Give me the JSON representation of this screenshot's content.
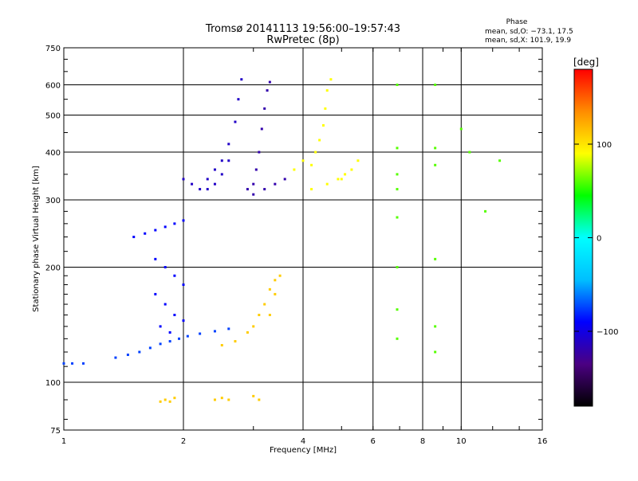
{
  "header": {
    "title": "Tromsø 20141113 19:56:00–19:57:43",
    "subtitle": "RwPretec (8p)"
  },
  "stats": {
    "heading": "Phase",
    "line1": "mean, sd,O: −73.1, 17.5",
    "line2": "mean, sd,X: 101.9, 19.9"
  },
  "colorbar": {
    "title": "[deg]",
    "ticks": [
      {
        "value": 100,
        "label": "100"
      },
      {
        "value": 0,
        "label": "0"
      },
      {
        "value": -100,
        "label": "−100"
      }
    ],
    "range": [
      -180,
      180
    ],
    "colormap": [
      "#000000",
      "#4b0082",
      "#0000ff",
      "#00bfff",
      "#00ffff",
      "#00ff00",
      "#ffff00",
      "#ff8c00",
      "#ff0000"
    ]
  },
  "chart_data": {
    "type": "scatter",
    "title": "Tromsø 20141113 19:56:00–19:57:43",
    "xlabel": "Frequency [MHz]",
    "ylabel": "Stationary phase Virtual Height [km]",
    "xscale": "log",
    "yscale": "log",
    "xlim": [
      1,
      16
    ],
    "ylim": [
      75,
      750
    ],
    "xticks": [
      1,
      2,
      4,
      6,
      8,
      10,
      16
    ],
    "yticks": [
      75,
      100,
      200,
      300,
      400,
      500,
      600,
      750
    ],
    "grid": true,
    "color_variable": "Phase [deg]",
    "clusters": [
      {
        "desc": "O-mode low trace",
        "color_phase": -75,
        "points": [
          [
            1.0,
            112
          ],
          [
            1.05,
            112
          ],
          [
            1.12,
            112
          ],
          [
            1.35,
            116
          ],
          [
            1.45,
            118
          ],
          [
            1.55,
            120
          ],
          [
            1.65,
            123
          ],
          [
            1.75,
            126
          ],
          [
            1.85,
            128
          ],
          [
            1.95,
            130
          ],
          [
            2.05,
            132
          ],
          [
            2.2,
            134
          ],
          [
            2.4,
            136
          ],
          [
            2.6,
            138
          ]
        ]
      },
      {
        "desc": "O-mode F1 band",
        "color_phase": -90,
        "points": [
          [
            1.5,
            240
          ],
          [
            1.6,
            245
          ],
          [
            1.7,
            250
          ],
          [
            1.8,
            255
          ],
          [
            1.9,
            260
          ],
          [
            2.0,
            265
          ],
          [
            1.7,
            210
          ],
          [
            1.8,
            200
          ],
          [
            1.9,
            190
          ],
          [
            2.0,
            180
          ],
          [
            1.7,
            170
          ],
          [
            1.8,
            160
          ],
          [
            1.9,
            150
          ],
          [
            2.0,
            145
          ],
          [
            1.75,
            140
          ],
          [
            1.85,
            135
          ]
        ]
      },
      {
        "desc": "O-mode F2 upper",
        "color_phase": -110,
        "points": [
          [
            2.0,
            340
          ],
          [
            2.1,
            330
          ],
          [
            2.2,
            320
          ],
          [
            2.3,
            340
          ],
          [
            2.4,
            360
          ],
          [
            2.5,
            380
          ],
          [
            2.6,
            420
          ],
          [
            2.7,
            480
          ],
          [
            2.75,
            550
          ],
          [
            2.8,
            620
          ],
          [
            2.6,
            380
          ],
          [
            2.5,
            350
          ],
          [
            2.4,
            330
          ],
          [
            2.3,
            320
          ]
        ]
      },
      {
        "desc": "O-mode F2 cusp",
        "color_phase": -120,
        "points": [
          [
            2.9,
            320
          ],
          [
            3.0,
            330
          ],
          [
            3.05,
            360
          ],
          [
            3.1,
            400
          ],
          [
            3.15,
            460
          ],
          [
            3.2,
            520
          ],
          [
            3.25,
            580
          ],
          [
            3.3,
            610
          ],
          [
            3.0,
            310
          ],
          [
            3.2,
            320
          ],
          [
            3.4,
            330
          ],
          [
            3.6,
            340
          ]
        ]
      },
      {
        "desc": "X-mode mid",
        "color_phase": 110,
        "points": [
          [
            2.5,
            125
          ],
          [
            2.7,
            128
          ],
          [
            2.9,
            135
          ],
          [
            3.0,
            140
          ],
          [
            3.1,
            150
          ],
          [
            3.2,
            160
          ],
          [
            3.3,
            175
          ],
          [
            3.4,
            185
          ],
          [
            3.5,
            190
          ],
          [
            3.3,
            150
          ],
          [
            3.4,
            170
          ]
        ]
      },
      {
        "desc": "X-mode F2",
        "color_phase": 90,
        "points": [
          [
            3.8,
            360
          ],
          [
            4.0,
            380
          ],
          [
            4.2,
            370
          ],
          [
            4.3,
            400
          ],
          [
            4.4,
            430
          ],
          [
            4.5,
            470
          ],
          [
            4.55,
            520
          ],
          [
            4.6,
            580
          ],
          [
            4.7,
            620
          ],
          [
            4.9,
            340
          ],
          [
            5.1,
            350
          ],
          [
            5.3,
            360
          ],
          [
            5.5,
            380
          ],
          [
            4.2,
            320
          ],
          [
            4.6,
            330
          ],
          [
            5.0,
            340
          ]
        ]
      },
      {
        "desc": "E-layer echoes",
        "color_phase": 110,
        "points": [
          [
            1.75,
            89
          ],
          [
            1.8,
            90
          ],
          [
            1.85,
            89
          ],
          [
            1.9,
            91
          ],
          [
            2.4,
            90
          ],
          [
            2.5,
            91
          ],
          [
            2.6,
            90
          ],
          [
            3.0,
            92
          ],
          [
            3.1,
            90
          ]
        ]
      },
      {
        "desc": "Sparse interference",
        "color_phase": 60,
        "points": [
          [
            6.9,
            600
          ],
          [
            6.9,
            410
          ],
          [
            6.9,
            350
          ],
          [
            6.9,
            320
          ],
          [
            6.9,
            270
          ],
          [
            6.9,
            200
          ],
          [
            6.9,
            155
          ],
          [
            6.9,
            130
          ],
          [
            8.6,
            600
          ],
          [
            8.6,
            410
          ],
          [
            8.6,
            370
          ],
          [
            8.6,
            210
          ],
          [
            8.6,
            140
          ],
          [
            8.6,
            120
          ],
          [
            10.0,
            460
          ],
          [
            10.5,
            400
          ],
          [
            11.5,
            280
          ],
          [
            12.5,
            380
          ]
        ]
      }
    ]
  }
}
